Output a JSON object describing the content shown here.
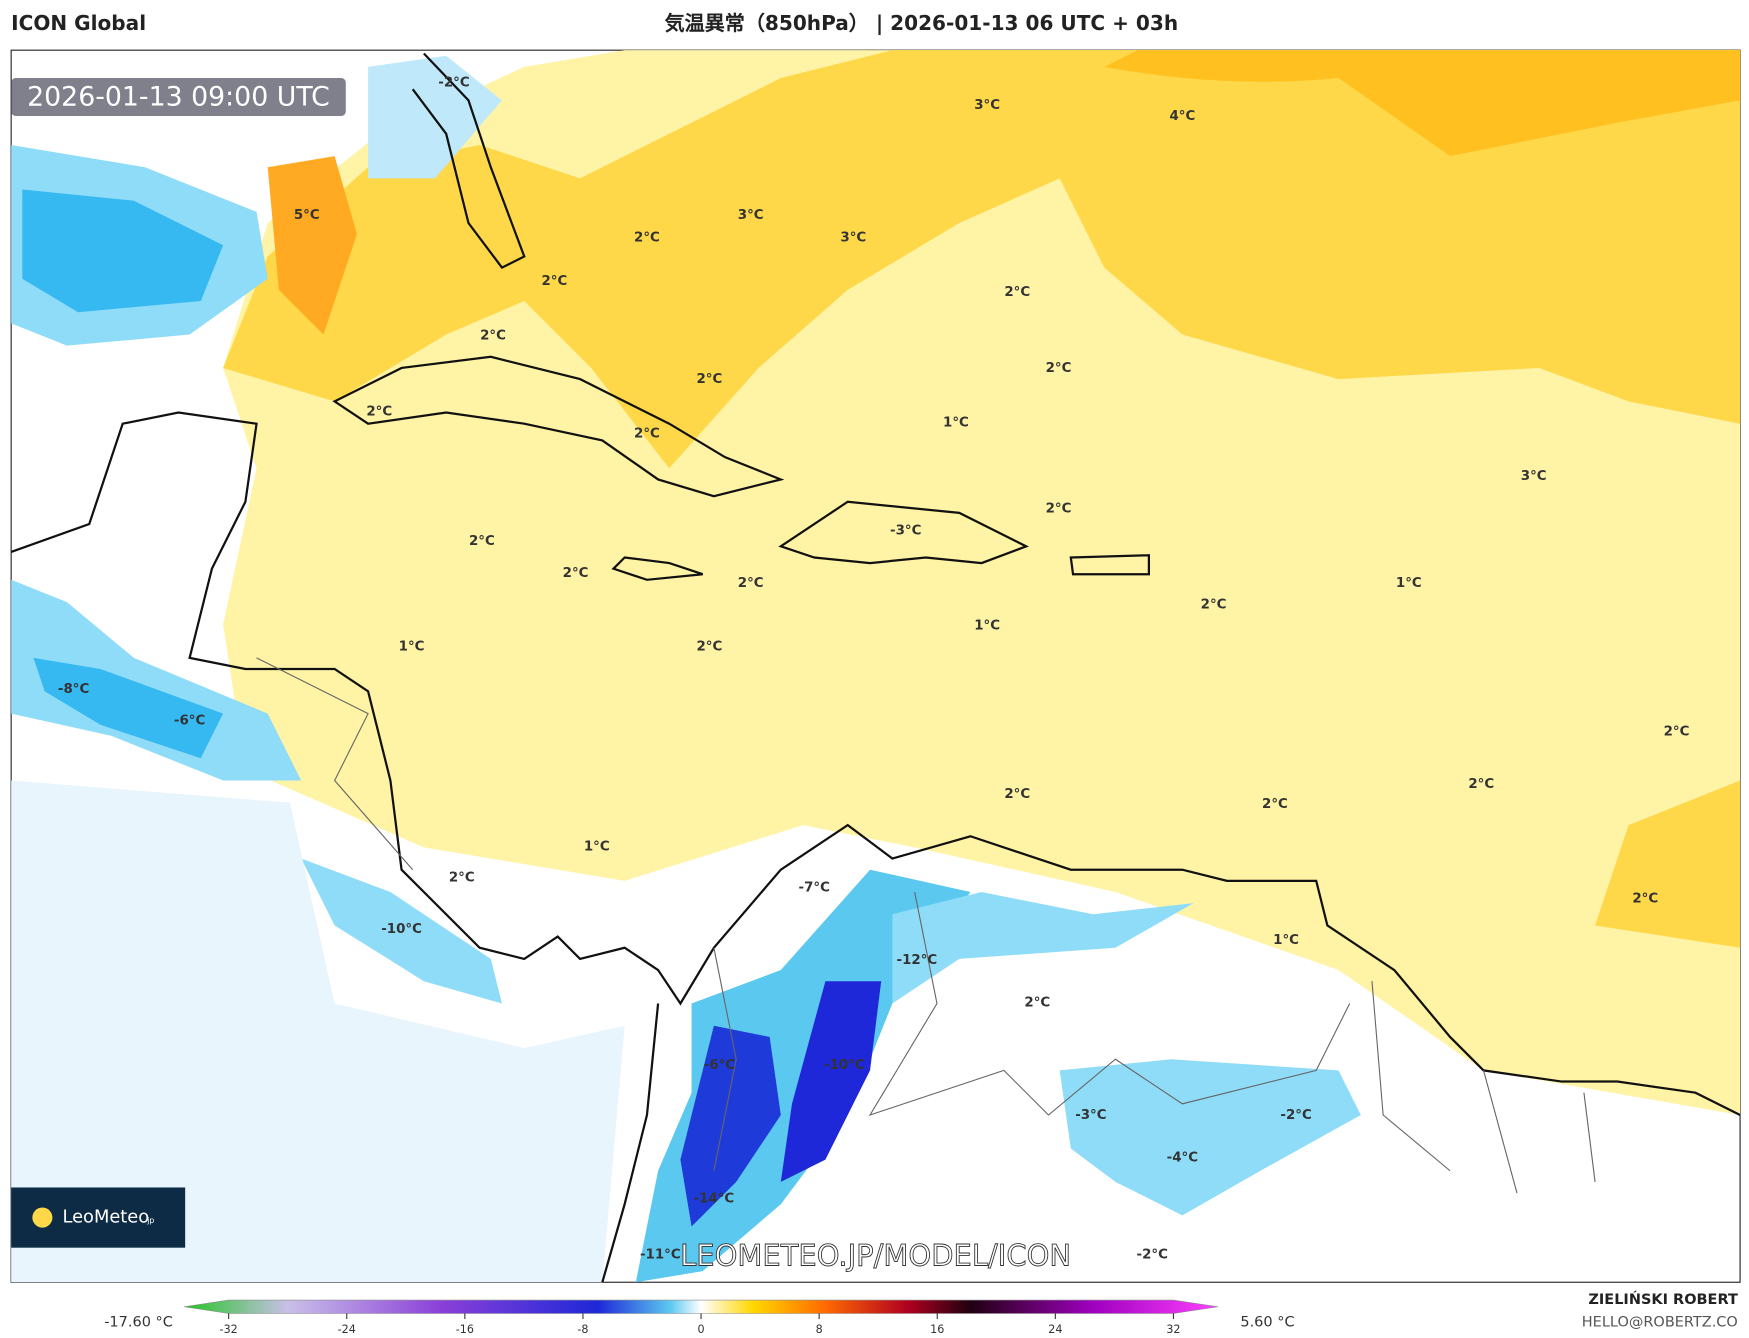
{
  "header": {
    "model": "ICON Global",
    "title": "気温異常（850hPa） | 2026-01-13 06 UTC + 03h"
  },
  "map": {
    "timestamp": "2026-01-13 09:00 UTC",
    "watermark": "LEOMETEO.JP/MODEL/ICON",
    "logo": {
      "name": "LeoMeteo",
      "suffix": "jp"
    },
    "labels": [
      "-2°C",
      "3°C",
      "4°C",
      "5°C",
      "2°C",
      "3°C",
      "3°C",
      "2°C",
      "2°C",
      "2°C",
      "2°C",
      "2°C",
      "2°C",
      "1°C",
      "2°C",
      "3°C",
      "2°C",
      "2°C",
      "-3°C",
      "2°C",
      "2°C",
      "1°C",
      "2°C",
      "1°C",
      "1°C",
      "2°C",
      "-8°C",
      "-6°C",
      "2°C",
      "2°C",
      "2°C",
      "2°C",
      "1°C",
      "-7°C",
      "2°C",
      "2°C",
      "-10°C",
      "1°C",
      "-12°C",
      "2°C",
      "-6°C",
      "-10°C",
      "-3°C",
      "-2°C",
      "-4°C",
      "-14°C",
      "-11°C",
      "-2°C"
    ]
  },
  "colorbar": {
    "min_label": "-17.60 °C",
    "max_label": "5.60 °C",
    "ticks": [
      -32,
      -24,
      -16,
      -8,
      0,
      8,
      16,
      24,
      32
    ]
  },
  "credits": {
    "author": "ZIELIŃSKI ROBERT",
    "contact": "HELLO@ROBERTZ.CO"
  }
}
